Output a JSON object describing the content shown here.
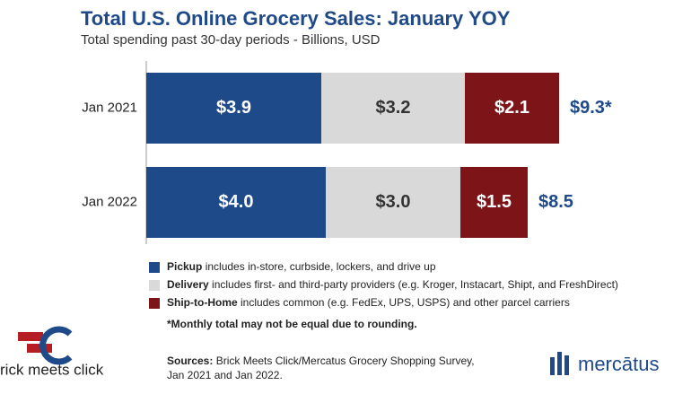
{
  "chart_data": {
    "type": "stacked-bar-horizontal",
    "title": "Total U.S. Online Grocery Sales: January YOY",
    "subtitle": "Total spending past 30-day periods - Billions, USD",
    "categories": [
      "Jan 2021",
      "Jan 2022"
    ],
    "series": [
      {
        "name": "Pickup",
        "description": "includes in-store, curbside, lockers, and drive up",
        "color": "#1f4a8a",
        "label_color": "#ffffff",
        "values": [
          3.9,
          4.0
        ],
        "value_labels": [
          "$3.9",
          "$4.0"
        ]
      },
      {
        "name": "Delivery",
        "description": "includes first- and third-party providers (e.g. Kroger, Instacart, Shipt, and FreshDirect)",
        "color": "#d9d9d9",
        "label_color": "#333333",
        "values": [
          3.2,
          3.0
        ],
        "value_labels": [
          "$3.2",
          "$3.0"
        ]
      },
      {
        "name": "Ship-to-Home",
        "description": "includes common (e.g. FedEx, UPS, USPS) and other parcel carriers",
        "color": "#7d1518",
        "label_color": "#ffffff",
        "values": [
          2.1,
          1.5
        ],
        "value_labels": [
          "$2.1",
          "$1.5"
        ]
      }
    ],
    "totals": [
      9.3,
      8.5
    ],
    "total_labels": [
      "$9.3*",
      "$8.5"
    ],
    "note": "*Monthly total may not be equal due to rounding.",
    "source_label": "Sources:",
    "source_lines": [
      "Brick Meets Click/Mercatus Grocery Shopping Survey,",
      "Jan 2021 and Jan 2022."
    ],
    "logos": [
      "rick meets click",
      "mercātus"
    ]
  }
}
